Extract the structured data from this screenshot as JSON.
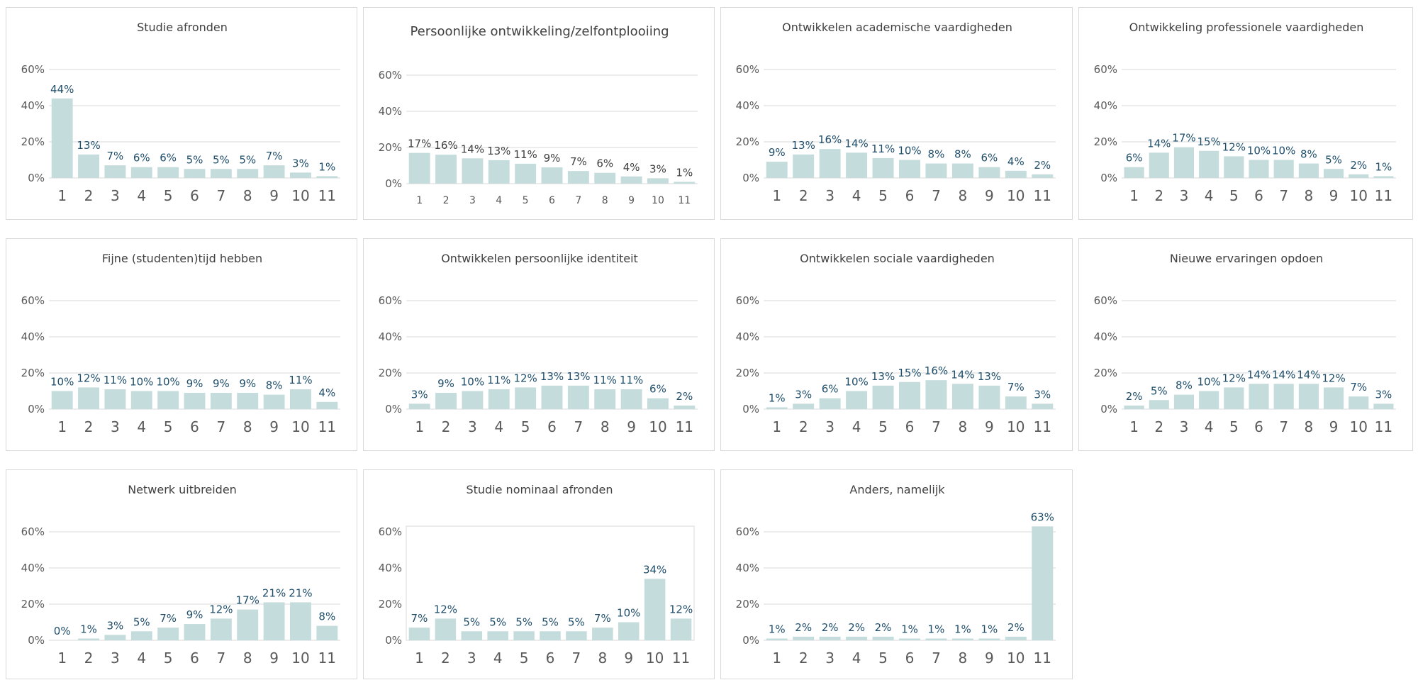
{
  "colors": {
    "bar": "#c5dcdc",
    "gridline": "#d9d9d9",
    "label_dark": "#1f4e6b",
    "label_gray": "#404040",
    "title": "#404040",
    "tick": "#595959"
  },
  "chart_data": [
    {
      "type": "bar",
      "title": "Studie afronden",
      "categories": [
        "1",
        "2",
        "3",
        "4",
        "5",
        "6",
        "7",
        "8",
        "9",
        "10",
        "11"
      ],
      "values": [
        44,
        13,
        7,
        6,
        6,
        5,
        5,
        5,
        7,
        3,
        1
      ],
      "labels": [
        "44%",
        "13%",
        "7%",
        "6%",
        "6%",
        "5%",
        "5%",
        "5%",
        "7%",
        "3%",
        "1%"
      ],
      "yticks": [
        "0%",
        "20%",
        "40%",
        "60%"
      ],
      "ylim": [
        0,
        60
      ],
      "grid": true,
      "label_color": "dark"
    },
    {
      "type": "bar",
      "title": "Persoonlijke ontwikkeling/zelfontplooiing",
      "categories": [
        "1",
        "2",
        "3",
        "4",
        "5",
        "6",
        "7",
        "8",
        "9",
        "10",
        "11"
      ],
      "values": [
        17,
        16,
        14,
        13,
        11,
        9,
        7,
        6,
        4,
        3,
        1
      ],
      "labels": [
        "17%",
        "16%",
        "14%",
        "13%",
        "11%",
        "9%",
        "7%",
        "6%",
        "4%",
        "3%",
        "1%"
      ],
      "yticks": [
        "0%",
        "20%",
        "40%",
        "60%"
      ],
      "ylim": [
        0,
        60
      ],
      "grid": true,
      "label_color": "gray"
    },
    {
      "type": "bar",
      "title": "Ontwikkelen academische vaardigheden",
      "categories": [
        "1",
        "2",
        "3",
        "4",
        "5",
        "6",
        "7",
        "8",
        "9",
        "10",
        "11"
      ],
      "values": [
        9,
        13,
        16,
        14,
        11,
        10,
        8,
        8,
        6,
        4,
        2
      ],
      "labels": [
        "9%",
        "13%",
        "16%",
        "14%",
        "11%",
        "10%",
        "8%",
        "8%",
        "6%",
        "4%",
        "2%"
      ],
      "yticks": [
        "0%",
        "20%",
        "40%",
        "60%"
      ],
      "ylim": [
        0,
        60
      ],
      "grid": true,
      "label_color": "dark"
    },
    {
      "type": "bar",
      "title": "Ontwikkeling professionele vaardigheden",
      "categories": [
        "1",
        "2",
        "3",
        "4",
        "5",
        "6",
        "7",
        "8",
        "9",
        "10",
        "11"
      ],
      "values": [
        6,
        14,
        17,
        15,
        12,
        10,
        10,
        8,
        5,
        2,
        1
      ],
      "labels": [
        "6%",
        "14%",
        "17%",
        "15%",
        "12%",
        "10%",
        "10%",
        "8%",
        "5%",
        "2%",
        "1%"
      ],
      "yticks": [
        "0%",
        "20%",
        "40%",
        "60%"
      ],
      "ylim": [
        0,
        60
      ],
      "grid": true,
      "label_color": "dark"
    },
    {
      "type": "bar",
      "title": "Fijne (studenten)tijd hebben",
      "categories": [
        "1",
        "2",
        "3",
        "4",
        "5",
        "6",
        "7",
        "8",
        "9",
        "10",
        "11"
      ],
      "values": [
        10,
        12,
        11,
        10,
        10,
        9,
        9,
        9,
        8,
        11,
        4
      ],
      "labels": [
        "10%",
        "12%",
        "11%",
        "10%",
        "10%",
        "9%",
        "9%",
        "9%",
        "8%",
        "11%",
        "4%"
      ],
      "yticks": [
        "0%",
        "20%",
        "40%",
        "60%"
      ],
      "ylim": [
        0,
        60
      ],
      "grid": true,
      "label_color": "dark"
    },
    {
      "type": "bar",
      "title": "Ontwikkelen persoonlijke identiteit",
      "categories": [
        "1",
        "2",
        "3",
        "4",
        "5",
        "6",
        "7",
        "8",
        "9",
        "10",
        "11"
      ],
      "values": [
        3,
        9,
        10,
        11,
        12,
        13,
        13,
        11,
        11,
        6,
        2
      ],
      "labels": [
        "3%",
        "9%",
        "10%",
        "11%",
        "12%",
        "13%",
        "13%",
        "11%",
        "11%",
        "6%",
        "2%"
      ],
      "yticks": [
        "0%",
        "20%",
        "40%",
        "60%"
      ],
      "ylim": [
        0,
        60
      ],
      "grid": true,
      "label_color": "dark"
    },
    {
      "type": "bar",
      "title": "Ontwikkelen sociale vaardigheden",
      "categories": [
        "1",
        "2",
        "3",
        "4",
        "5",
        "6",
        "7",
        "8",
        "9",
        "10",
        "11"
      ],
      "values": [
        1,
        3,
        6,
        10,
        13,
        15,
        16,
        14,
        13,
        7,
        3
      ],
      "labels": [
        "1%",
        "3%",
        "6%",
        "10%",
        "13%",
        "15%",
        "16%",
        "14%",
        "13%",
        "7%",
        "3%"
      ],
      "yticks": [
        "0%",
        "20%",
        "40%",
        "60%"
      ],
      "ylim": [
        0,
        60
      ],
      "grid": true,
      "label_color": "dark"
    },
    {
      "type": "bar",
      "title": "Nieuwe ervaringen opdoen",
      "categories": [
        "1",
        "2",
        "3",
        "4",
        "5",
        "6",
        "7",
        "8",
        "9",
        "10",
        "11"
      ],
      "values": [
        2,
        5,
        8,
        10,
        12,
        14,
        14,
        14,
        12,
        7,
        3
      ],
      "labels": [
        "2%",
        "5%",
        "8%",
        "10%",
        "12%",
        "14%",
        "14%",
        "14%",
        "12%",
        "7%",
        "3%"
      ],
      "yticks": [
        "0%",
        "20%",
        "40%",
        "60%"
      ],
      "ylim": [
        0,
        60
      ],
      "grid": true,
      "label_color": "dark"
    },
    {
      "type": "bar",
      "title": "Netwerk uitbreiden",
      "categories": [
        "1",
        "2",
        "3",
        "4",
        "5",
        "6",
        "7",
        "8",
        "9",
        "10",
        "11"
      ],
      "values": [
        0,
        1,
        3,
        5,
        7,
        9,
        12,
        17,
        21,
        21,
        8
      ],
      "labels": [
        "0%",
        "1%",
        "3%",
        "5%",
        "7%",
        "9%",
        "12%",
        "17%",
        "21%",
        "21%",
        "8%"
      ],
      "yticks": [
        "0%",
        "20%",
        "40%",
        "60%"
      ],
      "ylim": [
        0,
        60
      ],
      "grid": true,
      "label_color": "dark"
    },
    {
      "type": "bar",
      "title": "Studie nominaal afronden",
      "categories": [
        "1",
        "2",
        "3",
        "4",
        "5",
        "6",
        "7",
        "8",
        "9",
        "10",
        "11"
      ],
      "values": [
        7,
        12,
        5,
        5,
        5,
        5,
        5,
        7,
        10,
        34,
        12
      ],
      "labels": [
        "7%",
        "12%",
        "5%",
        "5%",
        "5%",
        "5%",
        "5%",
        "7%",
        "10%",
        "34%",
        "12%"
      ],
      "yticks": [
        "0%",
        "20%",
        "40%",
        "60%"
      ],
      "ylim": [
        0,
        60
      ],
      "grid": false,
      "label_color": "dark"
    },
    {
      "type": "bar",
      "title": "Anders, namelijk",
      "categories": [
        "1",
        "2",
        "3",
        "4",
        "5",
        "6",
        "7",
        "8",
        "9",
        "10",
        "11"
      ],
      "values": [
        1,
        2,
        2,
        2,
        2,
        1,
        1,
        1,
        1,
        2,
        63
      ],
      "labels": [
        "1%",
        "2%",
        "2%",
        "2%",
        "2%",
        "1%",
        "1%",
        "1%",
        "1%",
        "2%",
        "63%"
      ],
      "yticks": [
        "0%",
        "20%",
        "40%",
        "60%"
      ],
      "ylim": [
        0,
        60
      ],
      "grid": true,
      "label_color": "dark"
    }
  ]
}
